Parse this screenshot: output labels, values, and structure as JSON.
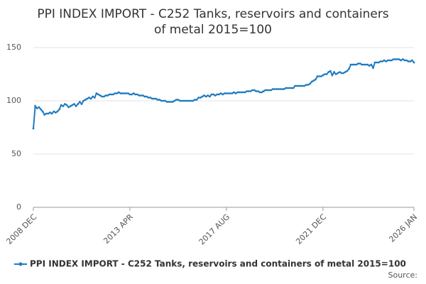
{
  "chart_data": {
    "type": "line",
    "title": [
      "PPI INDEX IMPORT - C252 Tanks, reservoirs and containers",
      "of metal 2015=100"
    ],
    "source_label": "Source:",
    "categories": [
      "2008 DEC",
      null,
      null,
      null,
      null,
      null,
      null,
      null,
      null,
      null,
      null,
      null,
      null,
      null,
      null,
      null,
      null,
      null,
      null,
      null,
      null,
      null,
      null,
      null,
      null,
      null,
      null,
      null,
      null,
      null,
      null,
      null,
      null,
      null,
      null,
      null,
      null,
      null,
      null,
      null,
      null,
      null,
      null,
      null,
      null,
      null,
      null,
      null,
      null,
      null,
      null,
      null,
      "2013 APR",
      null,
      null,
      null,
      null,
      null,
      null,
      null,
      null,
      null,
      null,
      null,
      null,
      null,
      null,
      null,
      null,
      null,
      null,
      null,
      null,
      null,
      null,
      null,
      null,
      null,
      null,
      null,
      null,
      null,
      null,
      null,
      null,
      null,
      null,
      null,
      null,
      null,
      null,
      null,
      null,
      null,
      null,
      null,
      null,
      null,
      null,
      null,
      null,
      null,
      null,
      null,
      "2017 AUG",
      null,
      null,
      null,
      null,
      null,
      null,
      null,
      null,
      null,
      null,
      null,
      null,
      null,
      null,
      null,
      null,
      null,
      null,
      null,
      null,
      null,
      null,
      null,
      null,
      null,
      null,
      null,
      null,
      null,
      null,
      null,
      null,
      null,
      null,
      null,
      null,
      null,
      null,
      null,
      null,
      null,
      null,
      null,
      null,
      null,
      null,
      null,
      null,
      null,
      null,
      null,
      "2021 DEC",
      null,
      null,
      null,
      null,
      null,
      null,
      null,
      null,
      null,
      null,
      null,
      null,
      null,
      null,
      null,
      null,
      null,
      null,
      null,
      null,
      null,
      null,
      null,
      null,
      null,
      null,
      null,
      null,
      null,
      null,
      null,
      null,
      null,
      null,
      null,
      null,
      null,
      null,
      null,
      null,
      null,
      null,
      null,
      null,
      null,
      null,
      null,
      null,
      "2026 JAN"
    ],
    "series": [
      {
        "name": "PPI INDEX IMPORT - C252 Tanks, reservoirs and containers of metal 2015=100",
        "color": "#1f7bbf",
        "values": [
          74,
          95,
          93,
          94,
          92,
          90,
          87,
          88,
          88,
          89,
          88,
          90,
          89,
          90,
          92,
          96,
          95,
          97,
          96,
          94,
          95,
          96,
          97,
          95,
          97,
          99,
          97,
          100,
          101,
          102,
          103,
          102,
          104,
          103,
          107,
          106,
          105,
          104,
          104,
          105,
          105,
          106,
          106,
          106,
          107,
          107,
          108,
          107,
          107,
          107,
          107,
          107,
          106,
          106,
          107,
          106,
          106,
          105,
          105,
          105,
          104,
          104,
          103,
          103,
          102,
          102,
          102,
          101,
          101,
          100,
          100,
          100,
          99,
          99,
          99,
          99,
          100,
          101,
          101,
          100,
          100,
          100,
          100,
          100,
          100,
          100,
          100,
          101,
          101,
          103,
          103,
          104,
          105,
          104,
          105,
          104,
          106,
          106,
          105,
          106,
          106,
          107,
          106,
          107,
          107,
          107,
          107,
          107,
          108,
          107,
          108,
          108,
          108,
          108,
          108,
          109,
          109,
          109,
          110,
          110,
          109,
          109,
          108,
          108,
          109,
          110,
          110,
          110,
          110,
          111,
          111,
          111,
          111,
          111,
          111,
          111,
          112,
          112,
          112,
          112,
          112,
          114,
          114,
          114,
          114,
          114,
          114,
          115,
          115,
          116,
          118,
          119,
          120,
          123,
          123,
          123,
          124,
          125,
          125,
          127,
          128,
          124,
          127,
          125,
          126,
          127,
          126,
          126,
          127,
          128,
          130,
          134,
          134,
          134,
          134,
          135,
          135,
          134,
          134,
          134,
          134,
          133,
          134,
          131,
          136,
          136,
          136,
          137,
          137,
          138,
          137,
          138,
          138,
          138,
          139,
          139,
          139,
          139,
          138,
          139,
          138,
          138,
          137,
          137,
          138,
          136
        ]
      }
    ],
    "ylim": [
      0,
      150
    ],
    "yticks": [
      0,
      50,
      100,
      150
    ],
    "grid": true,
    "legend": "bottom"
  }
}
